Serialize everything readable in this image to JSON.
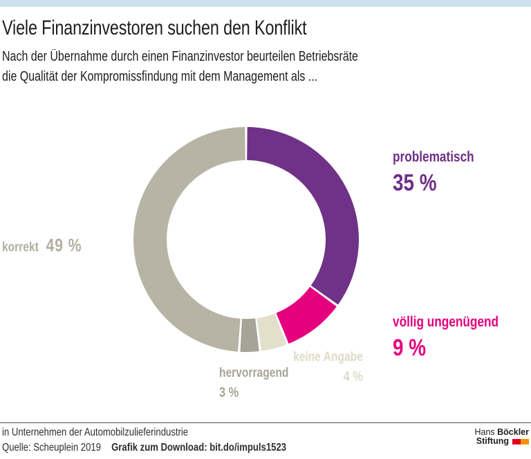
{
  "page": {
    "accent_bar_color": "#cde2ec",
    "background": "#ffffff"
  },
  "chart_data": {
    "type": "pie",
    "subtype": "donut",
    "title": "Viele Finanzinvestoren suchen den Konflikt",
    "subtitle_lines": [
      "Nach der Übernahme durch einen Finanzinvestor beurteilen Betriebsräte",
      "die Qualität der Kompromissfindung mit dem Management als ..."
    ],
    "unit": "%",
    "start_angle_deg": 0,
    "direction": "clockwise",
    "gap_deg": 1.2,
    "segments": [
      {
        "label": "problematisch",
        "value": 35,
        "value_label": "35 %",
        "color": "#6f3287"
      },
      {
        "label": "völlig ungenügend",
        "value": 9,
        "value_label": "9 %",
        "color": "#e5007e"
      },
      {
        "label": "keine Angabe",
        "value": 4,
        "value_label": "4 %",
        "color": "#e2dfca"
      },
      {
        "label": "hervorragend",
        "value": 3,
        "value_label": "3 %",
        "color": "#a6a497"
      },
      {
        "label": "korrekt",
        "value": 49,
        "value_label": "49 %",
        "color": "#b7b4a5"
      }
    ],
    "label_colors": {
      "problematisch": "#6d2f86",
      "voellig_ungenuegend": "#e5007e",
      "keine_angabe": "#dedbc5",
      "hervorragend": "#a6a497",
      "korrekt": "#b2afa0"
    }
  },
  "footer": {
    "context": "in Unternehmen der Automobilzulieferindustrie",
    "source": "Quelle: Scheuplein 2019",
    "download": "Grafik zum Download: bit.do/impuls1523",
    "logo": {
      "line1_regular": "Hans",
      "line1_bold": "Böckler",
      "line2_bold": "Stiftung",
      "square_colors": [
        "#e2001a",
        "#f29400"
      ]
    }
  }
}
